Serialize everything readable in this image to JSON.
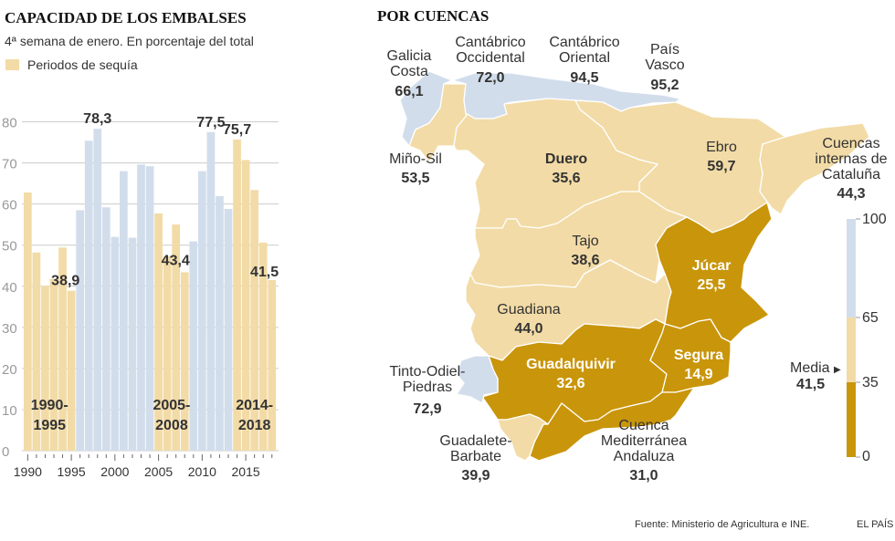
{
  "chart_data": {
    "type": "bar",
    "title": "CAPACIDAD DE LOS EMBALSES",
    "subtitle": "4ª semana de enero. En porcentaje del total",
    "legend": "Periodos de sequía",
    "x": [
      1990,
      1991,
      1992,
      1993,
      1994,
      1995,
      1996,
      1997,
      1998,
      1999,
      2000,
      2001,
      2002,
      2003,
      2004,
      2005,
      2006,
      2007,
      2008,
      2009,
      2010,
      2011,
      2012,
      2013,
      2014,
      2015,
      2016,
      2017,
      2018
    ],
    "values": [
      62.8,
      48.2,
      40.1,
      41.8,
      49.4,
      38.9,
      58.5,
      75.4,
      78.3,
      59.2,
      52.0,
      68.0,
      51.8,
      69.6,
      69.2,
      57.7,
      47.3,
      55.0,
      43.4,
      50.9,
      68.0,
      77.5,
      61.9,
      58.8,
      75.7,
      70.7,
      63.4,
      50.6,
      41.5
    ],
    "drought": [
      1,
      1,
      1,
      1,
      1,
      1,
      0,
      0,
      0,
      0,
      0,
      0,
      0,
      0,
      0,
      1,
      1,
      1,
      1,
      0,
      0,
      0,
      0,
      0,
      1,
      1,
      1,
      1,
      1
    ],
    "ylim": [
      0,
      80
    ],
    "yticks": [
      0,
      10,
      20,
      30,
      40,
      50,
      60,
      70,
      80
    ],
    "xticks_labeled": [
      1990,
      1995,
      2000,
      2005,
      2010,
      2015
    ],
    "data_labels": [
      {
        "year": 1995,
        "text": "38,9"
      },
      {
        "year": 1998,
        "text": "78,3"
      },
      {
        "year": 2008,
        "text": "43,4"
      },
      {
        "year": 2011,
        "text": "77,5"
      },
      {
        "year": 2014,
        "text": "75,7"
      },
      {
        "year": 2018,
        "text": "41,5"
      }
    ],
    "periods": [
      {
        "line1": "1990-",
        "line2": "1995"
      },
      {
        "line1": "2005-",
        "line2": "2008"
      },
      {
        "line1": "2014-",
        "line2": "2018"
      }
    ],
    "colors": {
      "drought": "#f2dba6",
      "normal": "#d2ddec",
      "grid": "#cccccc"
    }
  },
  "map": {
    "title": "POR CUENCAS",
    "basins": {
      "galicia": {
        "name1": "Galicia",
        "name2": "Costa",
        "value": "66,1"
      },
      "cant_occ": {
        "name1": "Cantábrico",
        "name2": "Occidental",
        "value": "72,0"
      },
      "cant_or": {
        "name1": "Cantábrico",
        "name2": "Oriental",
        "value": "94,5"
      },
      "pais_vasco": {
        "name1": "País",
        "name2": "Vasco",
        "value": "95,2"
      },
      "mino": {
        "name1": "Miño-Sil",
        "value": "53,5"
      },
      "duero": {
        "name1": "Duero",
        "value": "35,6"
      },
      "ebro": {
        "name1": "Ebro",
        "value": "59,7"
      },
      "cataluna": {
        "name1": "Cuencas",
        "name2": "internas de",
        "name3": "Cataluña",
        "value": "44,3"
      },
      "tajo": {
        "name1": "Tajo",
        "value": "38,6"
      },
      "jucar": {
        "name1": "Júcar",
        "value": "25,5"
      },
      "guadiana": {
        "name1": "Guadiana",
        "value": "44,0"
      },
      "guadalquivir": {
        "name1": "Guadalquivir",
        "value": "32,6"
      },
      "segura": {
        "name1": "Segura",
        "value": "14,9"
      },
      "tinto": {
        "name1": "Tinto-Odiel-",
        "name2": "Piedras",
        "value": "72,9"
      },
      "guadalete": {
        "name1": "Guadalete-",
        "name2": "Barbate",
        "value": "39,9"
      },
      "mediterranea": {
        "name1": "Cuenca",
        "name2": "Mediterránea",
        "name3": "Andaluza",
        "value": "31,0"
      }
    },
    "scale": {
      "ticks": [
        "100",
        "65",
        "35",
        "0"
      ],
      "media_label": "Media",
      "media_value": "41,5",
      "media_arrow": "▶",
      "colors": {
        "high": "#d2ddec",
        "mid": "#f2dba6",
        "low": "#c9950a"
      }
    }
  },
  "footer": {
    "source": "Fuente: Ministerio de Agricultura e INE.",
    "brand": "EL PAÍS"
  }
}
